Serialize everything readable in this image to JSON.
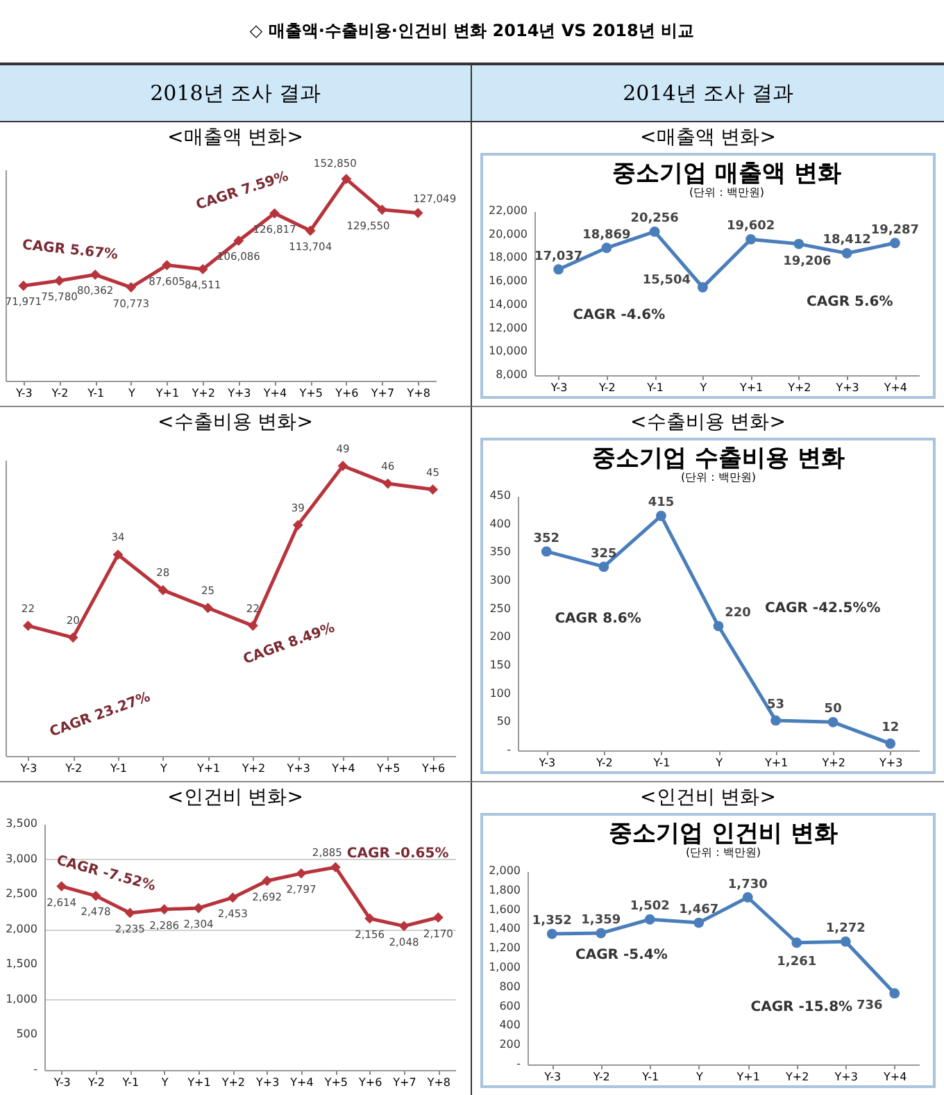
{
  "chart_data": [
    {
      "type": "line",
      "title": "<매출액 변화>",
      "annotations": [
        "◇ 매출액·수출비용·인건비 변화 2014년 VS 2018년 비교",
        "2018년 조사 결과",
        "CAGR 5.67%",
        "CAGR 7.59%"
      ],
      "categories": [
        "Y-3",
        "Y-2",
        "Y-1",
        "Y",
        "Y+1",
        "Y+2",
        "Y+3",
        "Y+4",
        "Y+5",
        "Y+6",
        "Y+7",
        "Y+8"
      ],
      "values": [
        71971,
        75780,
        80362,
        70773,
        87605,
        84511,
        106086,
        126817,
        113704,
        152850,
        129550,
        127049
      ],
      "value_labels": [
        "71,971",
        "75,780",
        "80,362",
        "70,773",
        "87,605",
        "84,511",
        "106,086",
        "126,817",
        "113,704",
        "152,850",
        "129,550",
        "127,049"
      ],
      "color": "#b8343c",
      "marker": "diamond",
      "tick_labels": "x"
    },
    {
      "type": "line",
      "title": "중소기업 매출액 변화",
      "subtitle": "(단위 : 백만원)",
      "annotations": [
        "2014년 조사 결과",
        "<매출액 변화>",
        "CAGR -4.6%",
        "CAGR 5.6%"
      ],
      "categories": [
        "Y-3",
        "Y-2",
        "Y-1",
        "Y",
        "Y+1",
        "Y+2",
        "Y+3",
        "Y+4"
      ],
      "values": [
        17037,
        18869,
        20256,
        15504,
        19602,
        19206,
        18412,
        19287
      ],
      "value_labels": [
        "17,037",
        "18,869",
        "20,256",
        "15,504",
        "19,602",
        "19,206",
        "18,412",
        "19,287"
      ],
      "color": "#4a7ebb",
      "marker": "circle",
      "ylim": [
        8000,
        22000
      ],
      "yticks": [
        {
          "value": 8000,
          "label": "8,000"
        },
        {
          "value": 10000,
          "label": "10,000"
        },
        {
          "value": 12000,
          "label": "12,000"
        },
        {
          "value": 14000,
          "label": "14,000"
        },
        {
          "value": 16000,
          "label": "16,000"
        },
        {
          "value": 18000,
          "label": "18,000"
        },
        {
          "value": 20000,
          "label": "20,000"
        },
        {
          "value": 22000,
          "label": "22,000"
        }
      ]
    },
    {
      "type": "line",
      "title": "<수출비용 변화>",
      "annotations": [
        "CAGR 23.27%",
        "CAGR 8.49%"
      ],
      "categories": [
        "Y-3",
        "Y-2",
        "Y-1",
        "Y",
        "Y+1",
        "Y+2",
        "Y+3",
        "Y+4",
        "Y+5",
        "Y+6"
      ],
      "values": [
        22,
        20,
        34,
        28,
        25,
        22,
        39,
        49,
        46,
        45
      ],
      "data_labels": true,
      "color": "#b8343c",
      "marker": "diamond",
      "tick_labels": "x"
    },
    {
      "type": "line",
      "title": "중소기업 수출비용 변화",
      "subtitle": "(단위 : 백만원)",
      "annotations": [
        "<수출비용 변화>",
        "CAGR 8.6%",
        "CAGR -42.5%%"
      ],
      "categories": [
        "Y-3",
        "Y-2",
        "Y-1",
        "Y",
        "Y+1",
        "Y+2",
        "Y+3"
      ],
      "values": [
        352,
        325,
        415,
        220,
        53,
        50,
        12
      ],
      "data_labels": true,
      "color": "#4a7ebb",
      "marker": "circle",
      "ylim": [
        0,
        450
      ],
      "yticks": [
        {
          "value": 0,
          "label": "-"
        },
        50,
        100,
        150,
        200,
        250,
        300,
        350,
        400,
        450
      ]
    },
    {
      "type": "line",
      "title": "<인건비 변화>",
      "annotations": [
        "CAGR -7.52%",
        "CAGR -0.65%"
      ],
      "categories": [
        "Y-3",
        "Y-2",
        "Y-1",
        "Y",
        "Y+1",
        "Y+2",
        "Y+3",
        "Y+4",
        "Y+5",
        "Y+6",
        "Y+7",
        "Y+8"
      ],
      "values": [
        2614,
        2478,
        2235,
        2286,
        2304,
        2453,
        2692,
        2797,
        2885,
        2156,
        2048,
        2170
      ],
      "value_labels": [
        "2,614",
        "2,478",
        "2,235",
        "2,286",
        "2,304",
        "2,453",
        "2,692",
        "2,797",
        "2,885",
        "2,156",
        "2,048",
        "2,170"
      ],
      "color": "#b8343c",
      "marker": "diamond",
      "grid": "y",
      "ylim": [
        0,
        3500
      ],
      "yticks": [
        {
          "value": 0,
          "label": "-"
        },
        500,
        {
          "value": 1000,
          "label": "1,000"
        },
        {
          "value": 1500,
          "label": "1,500"
        },
        {
          "value": 2000,
          "label": "2,000"
        },
        {
          "value": 2500,
          "label": "2,500"
        },
        {
          "value": 3000,
          "label": "3,000"
        },
        {
          "value": 3500,
          "label": "3,500"
        }
      ]
    },
    {
      "type": "line",
      "title": "중소기업 인건비 변화",
      "subtitle": "(단위 : 백만원)",
      "annotations": [
        "<인건비 변화>",
        "CAGR -5.4%",
        "CAGR -15.8%"
      ],
      "categories": [
        "Y-3",
        "Y-2",
        "Y-1",
        "Y",
        "Y+1",
        "Y+2",
        "Y+3",
        "Y+4"
      ],
      "values": [
        1352,
        1359,
        1502,
        1467,
        1730,
        1261,
        1272,
        736
      ],
      "value_labels": [
        "1,352",
        "1,359",
        "1,502",
        "1,467",
        "1,730",
        "1,261",
        "1,272",
        "736"
      ],
      "color": "#4a7ebb",
      "marker": "circle",
      "ylim": [
        0,
        2000
      ],
      "yticks": [
        {
          "value": 0,
          "label": "-"
        },
        200,
        400,
        600,
        800,
        {
          "value": 1000,
          "label": "1,000"
        },
        {
          "value": 1200,
          "label": "1,200"
        },
        {
          "value": 1400,
          "label": "1,400"
        },
        {
          "value": 1600,
          "label": "1,600"
        },
        {
          "value": 1800,
          "label": "1,800"
        },
        {
          "value": 2000,
          "label": "2,000"
        }
      ]
    }
  ]
}
